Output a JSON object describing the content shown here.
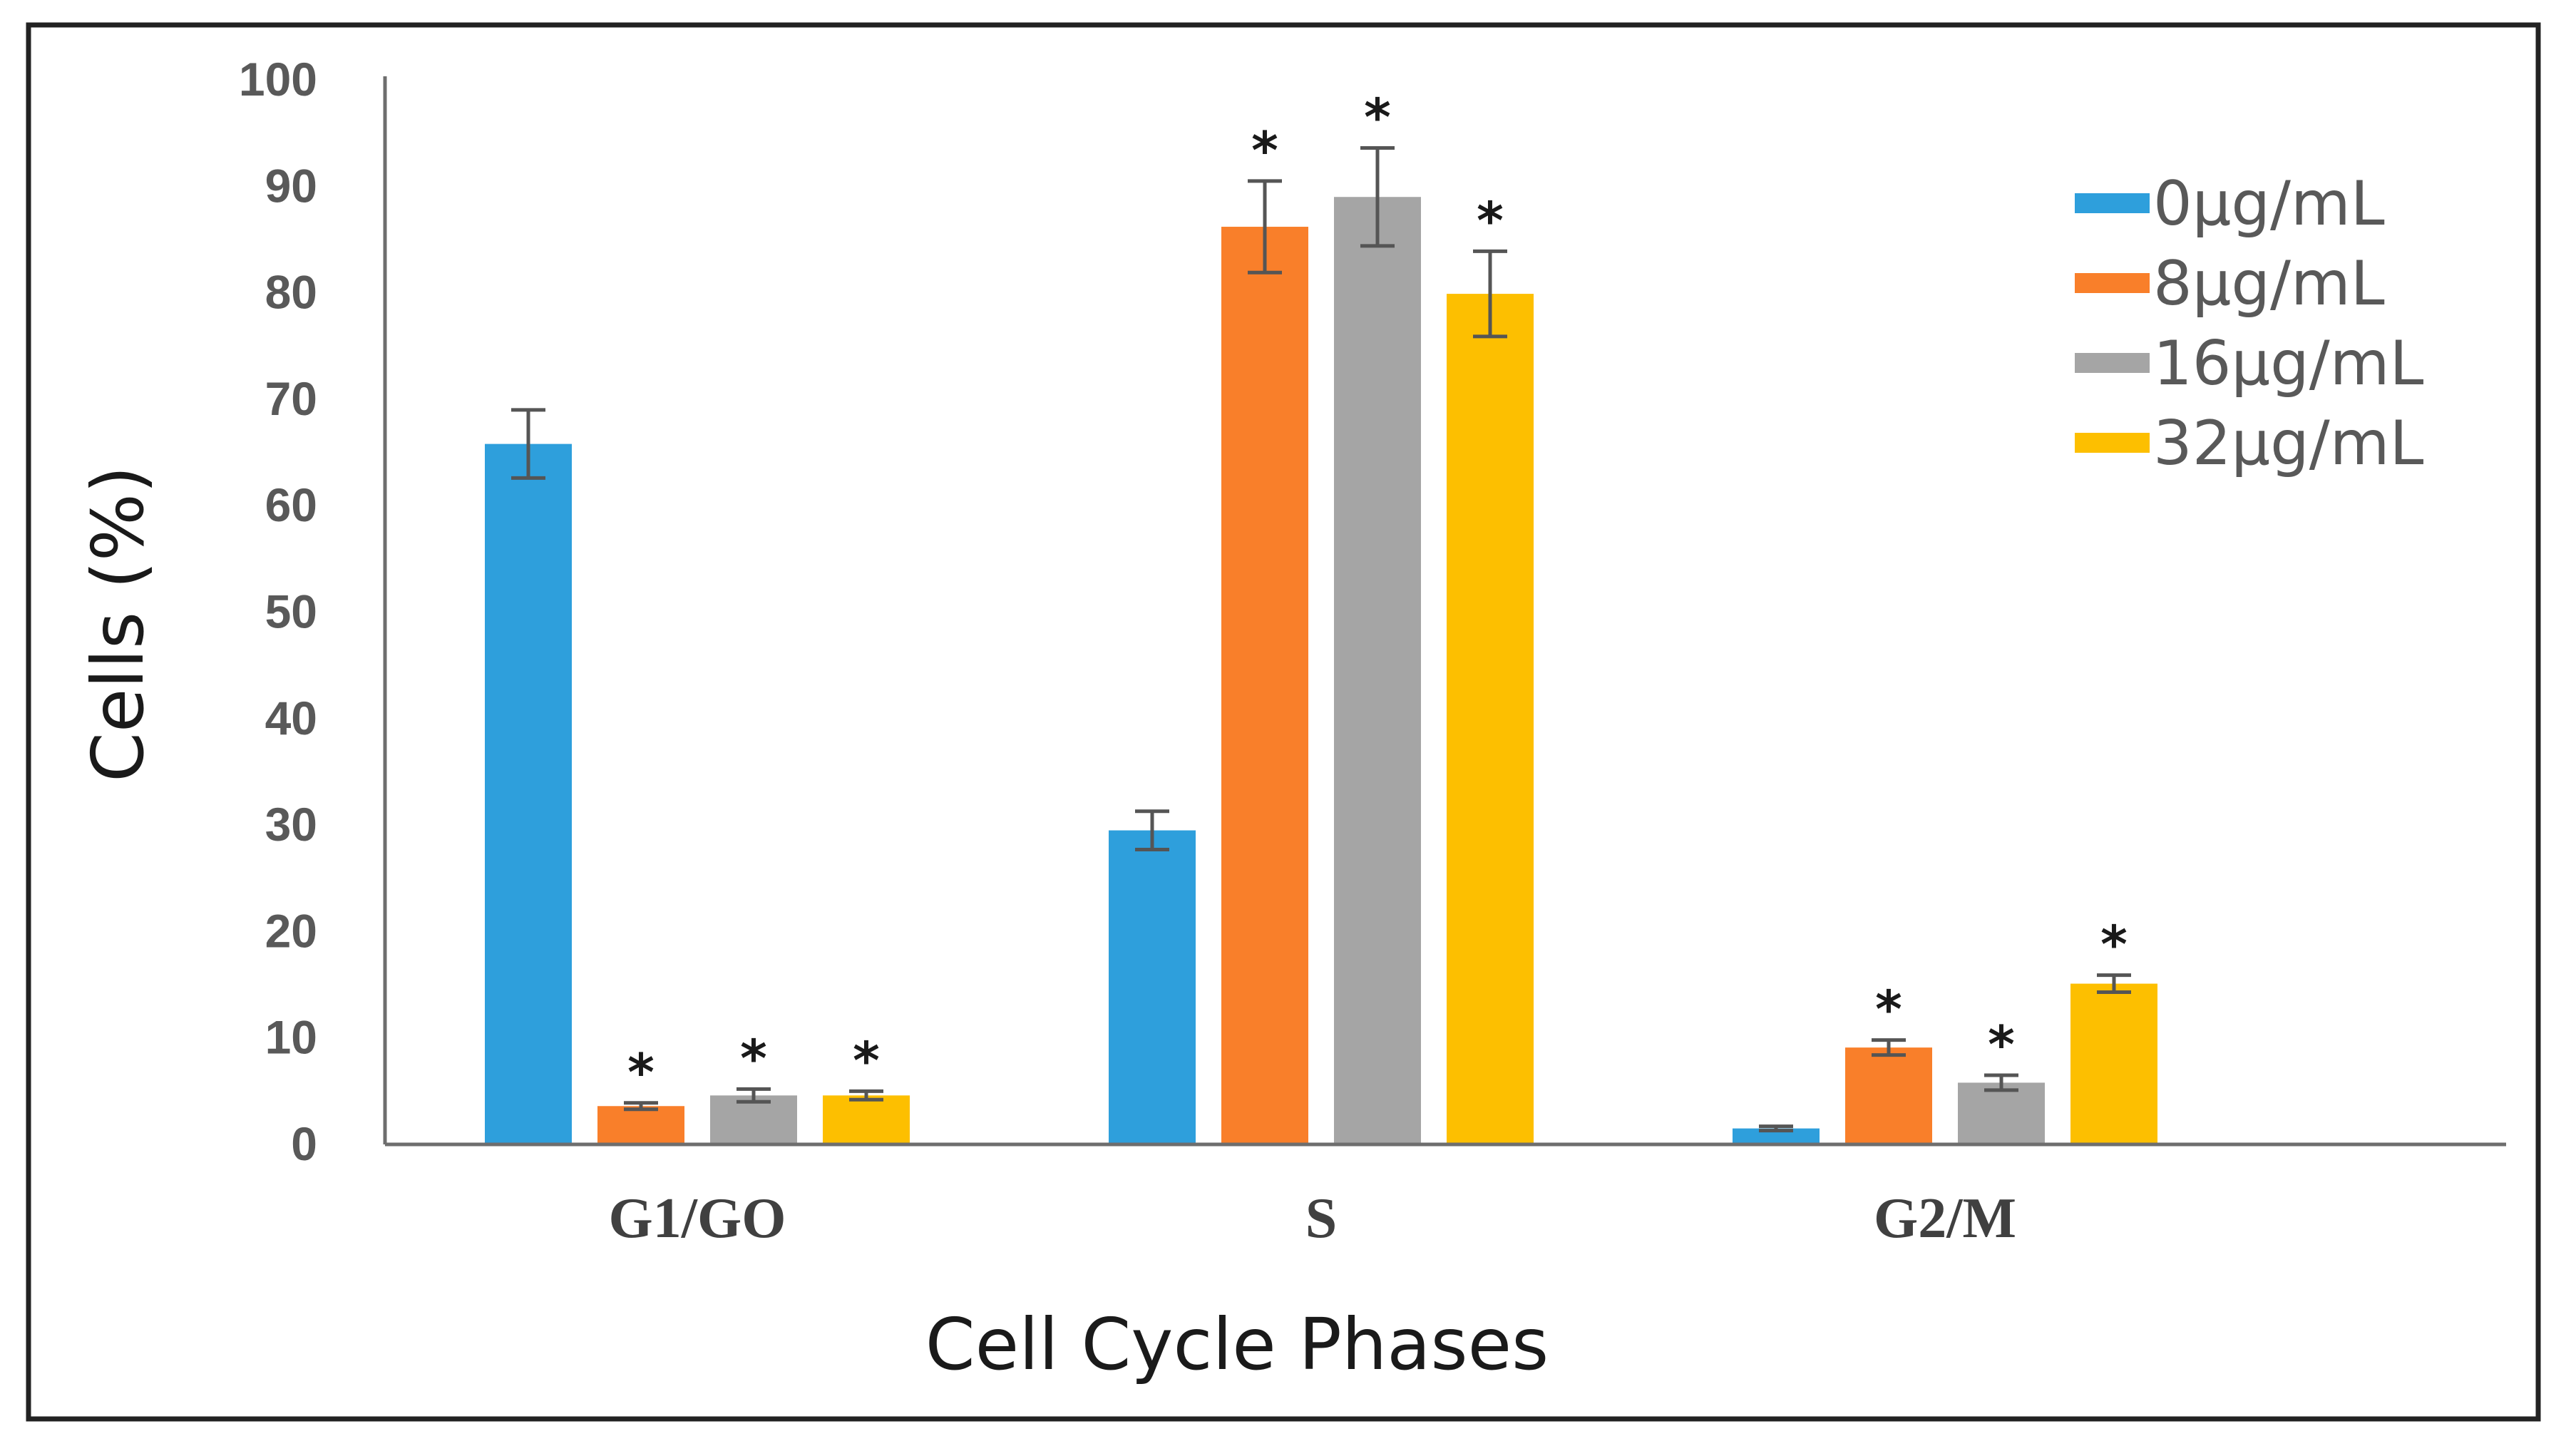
{
  "chart_data": {
    "type": "bar",
    "title": "",
    "xlabel": "Cell Cycle Phases",
    "ylabel": "Cells (%)",
    "ylim": [
      0,
      100
    ],
    "yticks": [
      "0",
      "10",
      "20",
      "30",
      "40",
      "50",
      "60",
      "70",
      "80",
      "90",
      "100"
    ],
    "categories": [
      "G1/GO",
      "S",
      "G2/M"
    ],
    "legend_position": "top-right",
    "grid": false,
    "series": [
      {
        "name": "0µg/mL",
        "color": "#2e9fdc",
        "values": [
          65.8,
          29.5,
          1.5
        ],
        "errors": [
          3.2,
          1.8,
          0.2
        ],
        "significance": [
          "",
          "",
          ""
        ]
      },
      {
        "name": "8µg/mL",
        "color": "#f97f2a",
        "values": [
          3.6,
          86.2,
          9.1
        ],
        "errors": [
          0.3,
          4.3,
          0.7
        ],
        "significance": [
          "*",
          "*",
          "*"
        ]
      },
      {
        "name": "16µg/mL",
        "color": "#a5a5a5",
        "values": [
          4.6,
          89.0,
          5.8
        ],
        "errors": [
          0.6,
          4.6,
          0.7
        ],
        "significance": [
          "*",
          "*",
          "*"
        ]
      },
      {
        "name": "32µg/mL",
        "color": "#fdbf00",
        "values": [
          4.6,
          79.9,
          15.1
        ],
        "errors": [
          0.4,
          4.0,
          0.8
        ],
        "significance": [
          "*",
          "*",
          "*"
        ]
      }
    ]
  }
}
